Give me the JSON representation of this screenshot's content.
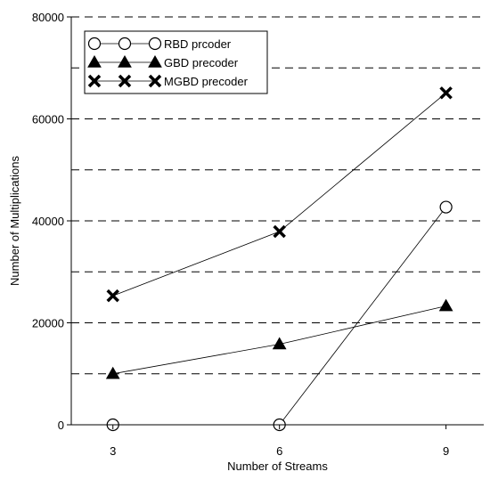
{
  "chart_data": {
    "type": "line",
    "title": "",
    "xlabel": "Number of Streams",
    "ylabel": "Number of Multiplications",
    "x": [
      3,
      6,
      9
    ],
    "x_tick_labels": [
      "3",
      "6",
      "9"
    ],
    "ylim": [
      0,
      80000
    ],
    "y_ticks": [
      0,
      20000,
      40000,
      60000,
      80000
    ],
    "y_tick_labels": [
      "0",
      "20000",
      "40000",
      "60000",
      "80000"
    ],
    "grid": "horizontal dashed every 10000",
    "legend_position": "top-left",
    "series": [
      {
        "name": "RBD prcoder",
        "marker": "circle",
        "values": [
          0,
          0,
          42700
        ]
      },
      {
        "name": "GBD precoder",
        "marker": "triangle",
        "values": [
          10000,
          15800,
          23300
        ]
      },
      {
        "name": "MGBD precoder",
        "marker": "x",
        "values": [
          25300,
          37900,
          65100
        ]
      }
    ]
  }
}
